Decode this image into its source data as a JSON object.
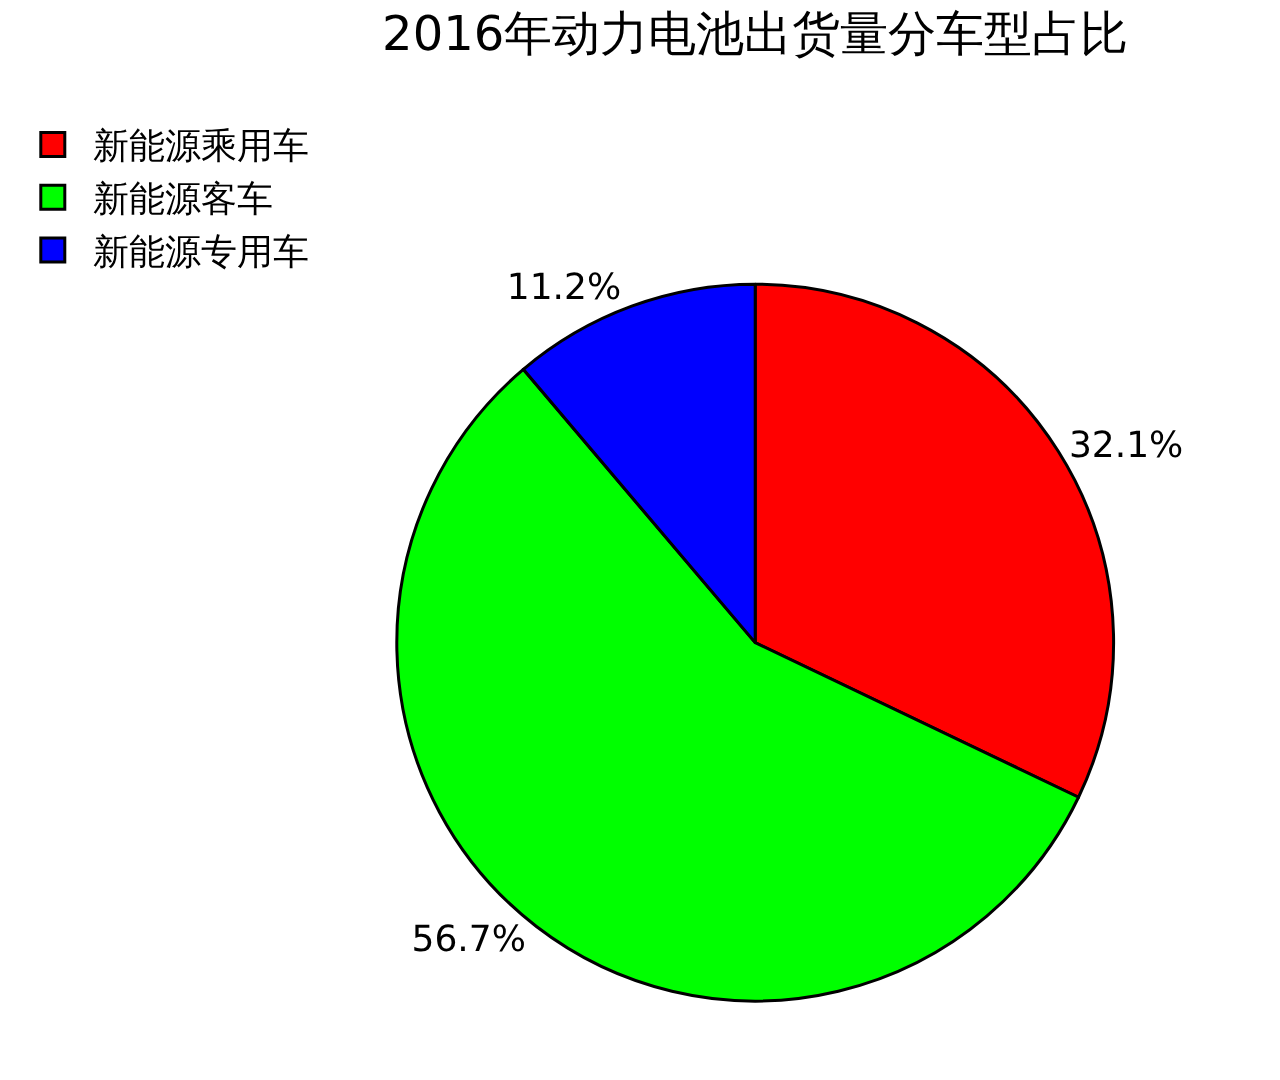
{
  "chart_data": {
    "type": "pie",
    "title": "2016年动力电池出货量分车型占比",
    "categories": [
      "新能源乘用车",
      "新能源客车",
      "新能源专用车"
    ],
    "values": [
      32.1,
      56.7,
      11.2
    ],
    "value_labels": [
      "32.1%",
      "56.7%",
      "11.2%"
    ],
    "colors": [
      "#ff0000",
      "#00ff00",
      "#0000ff"
    ],
    "legend": "top left"
  }
}
